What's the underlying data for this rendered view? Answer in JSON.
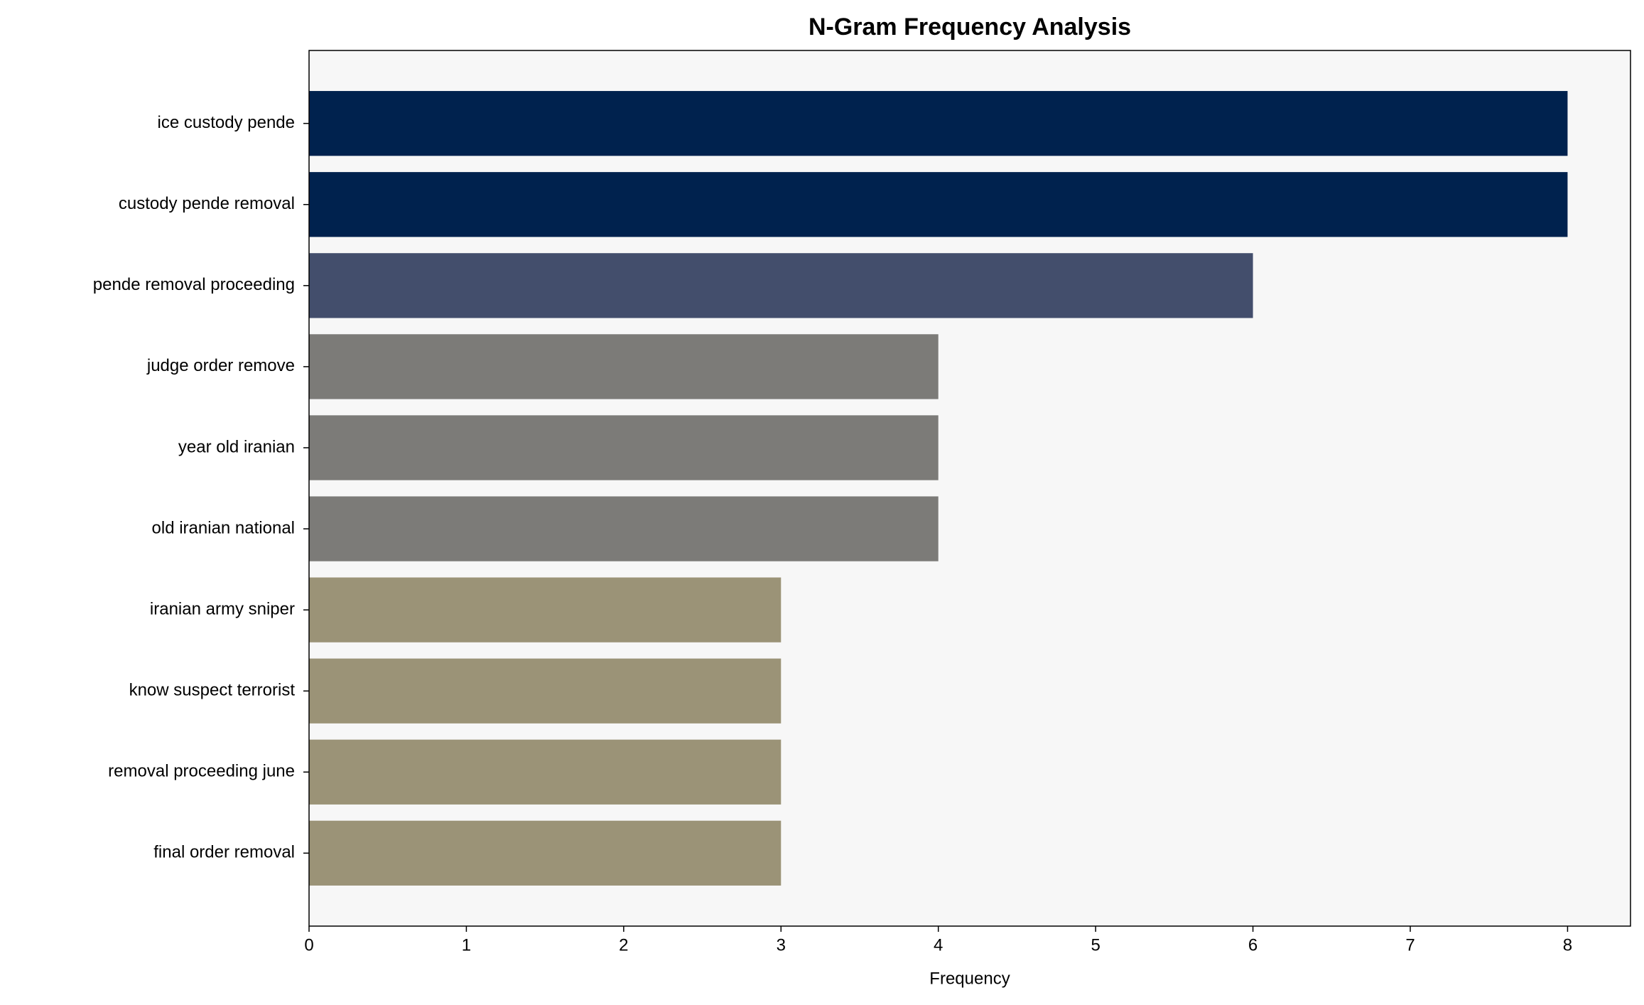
{
  "chart_data": {
    "type": "hbar",
    "title": "N-Gram Frequency Analysis",
    "x_label": "Frequency",
    "categories": [
      "ice custody pende",
      "custody pende removal",
      "pende removal proceeding",
      "judge order remove",
      "year old iranian",
      "old iranian national",
      "iranian army sniper",
      "know suspect terrorist",
      "removal proceeding june",
      "final order removal"
    ],
    "values": [
      8,
      8,
      6,
      4,
      4,
      4,
      3,
      3,
      3,
      3
    ],
    "colors": [
      "#00224e",
      "#00224e",
      "#434e6c",
      "#7c7b78",
      "#7c7b78",
      "#7c7b78",
      "#9b9377",
      "#9b9377",
      "#9b9377",
      "#9b9377"
    ],
    "xlim": [
      0,
      8.4
    ],
    "xticks": [
      0,
      1,
      2,
      3,
      4,
      5,
      6,
      7,
      8
    ]
  }
}
